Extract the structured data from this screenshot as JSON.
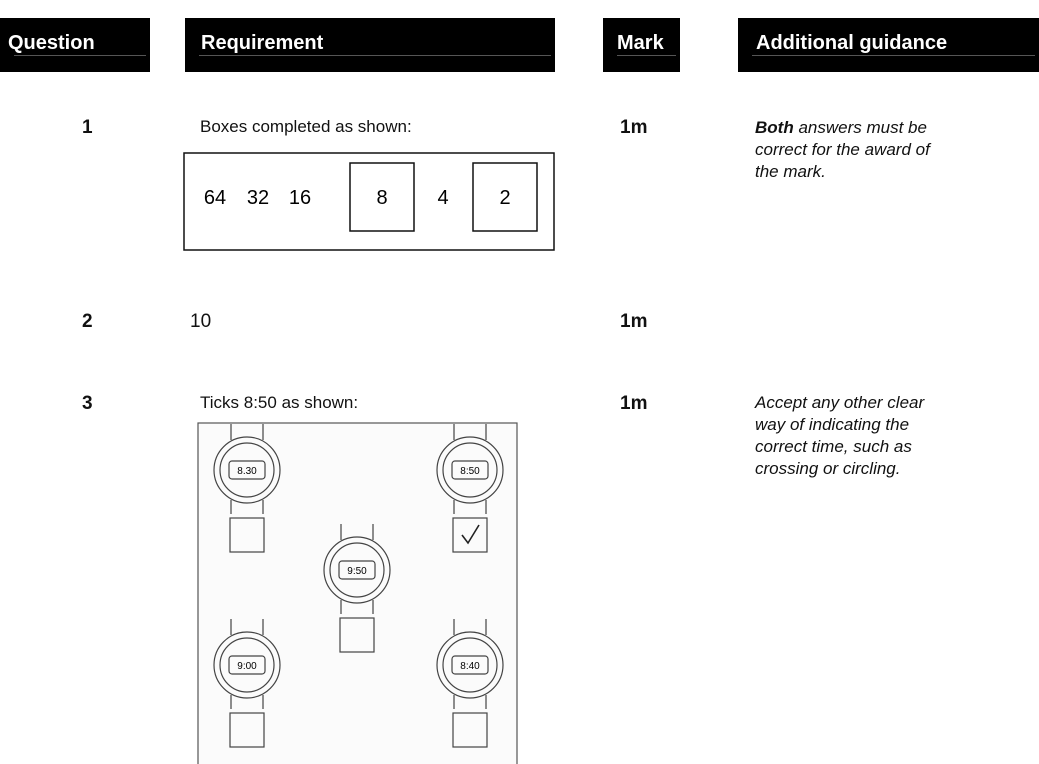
{
  "header": {
    "question": "Question",
    "requirement": "Requirement",
    "mark": "Mark",
    "guidance": "Additional guidance"
  },
  "rows": [
    {
      "question": "1",
      "requirement": "Boxes completed as shown:",
      "sequence": [
        "64",
        "32",
        "16",
        "8",
        "4",
        "2"
      ],
      "mark": "1m",
      "guidance": {
        "emphasis": "Both",
        "lines": [
          "answers must be",
          "correct for the award of",
          "the mark."
        ]
      }
    },
    {
      "question": "2",
      "requirement": "10",
      "mark": "1m"
    },
    {
      "question": "3",
      "requirement": "Ticks 8:50 as shown:",
      "watches": [
        "8.30",
        "8:50",
        "9:50",
        "9:00",
        "8:40"
      ],
      "mark": "1m",
      "guidance": {
        "lines": [
          "Accept any other clear",
          "way of indicating the",
          "correct time, such as",
          "crossing or circling."
        ]
      }
    }
  ]
}
